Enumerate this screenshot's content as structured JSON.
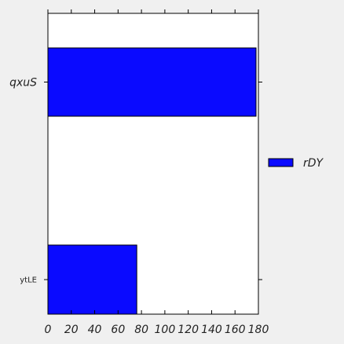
{
  "chart_data": {
    "type": "bar",
    "orientation": "horizontal",
    "categories": [
      "qxuS",
      "ytLE"
    ],
    "series": [
      {
        "name": "rDY",
        "values": [
          178,
          76
        ],
        "color": "#0a0aff"
      }
    ],
    "xlim": [
      0,
      180
    ],
    "xticks": [
      0,
      20,
      40,
      60,
      80,
      100,
      120,
      140,
      160,
      180
    ],
    "xlabel": "",
    "ylabel": "",
    "title": "",
    "grid": false,
    "legend": {
      "position": "right",
      "entries": [
        "rDY"
      ]
    }
  }
}
